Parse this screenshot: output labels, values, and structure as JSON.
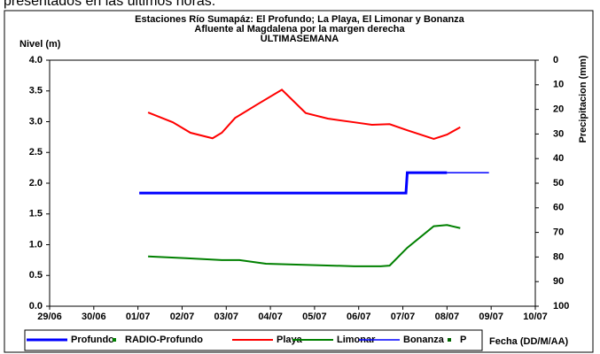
{
  "caption": "presentados en las últimos horas.",
  "chart_data": {
    "type": "line",
    "title": [
      "Estaciones Río Sumapáz: El Profundo; La Playa, El Limonar y Bonanza",
      "Afluente al Magdalena por la margen derecha",
      "ULTIMASEMANA"
    ],
    "ylabel": "Nivel (m)",
    "y2label": "Precipitacion (mm)",
    "xlabel": "Fecha (DD/M/AA)",
    "xlim": [
      0,
      11
    ],
    "xticks": [
      {
        "value": 0,
        "label": "29/06"
      },
      {
        "value": 1,
        "label": "30/06"
      },
      {
        "value": 2,
        "label": "01/07"
      },
      {
        "value": 3,
        "label": "02/07"
      },
      {
        "value": 4,
        "label": "03/07"
      },
      {
        "value": 5,
        "label": "04/07"
      },
      {
        "value": 6,
        "label": "05/07"
      },
      {
        "value": 7,
        "label": "06/07"
      },
      {
        "value": 8,
        "label": "07/07"
      },
      {
        "value": 9,
        "label": "08/07"
      },
      {
        "value": 10,
        "label": "09/07"
      },
      {
        "value": 11,
        "label": "10/07"
      }
    ],
    "ylim": [
      0,
      4
    ],
    "yticks": [
      {
        "value": 0,
        "label": "0.0"
      },
      {
        "value": 0.5,
        "label": "0.5"
      },
      {
        "value": 1,
        "label": "1.0"
      },
      {
        "value": 1.5,
        "label": "1.5"
      },
      {
        "value": 2,
        "label": "2.0"
      },
      {
        "value": 2.5,
        "label": "2.5"
      },
      {
        "value": 3,
        "label": "3.0"
      },
      {
        "value": 3.5,
        "label": "3.5"
      },
      {
        "value": 4,
        "label": "4.0"
      }
    ],
    "y2lim": [
      100,
      0
    ],
    "y2ticks": [
      0,
      10,
      20,
      30,
      40,
      50,
      60,
      70,
      80,
      90,
      100
    ],
    "series": [
      {
        "name": "Profundo",
        "color": "#0000ff",
        "mark": "line",
        "width": 3,
        "x": [
          2.03,
          8.07,
          8.1,
          9.0
        ],
        "values": [
          1.84,
          1.84,
          2.17,
          2.17
        ]
      },
      {
        "name": "RADIO-Profundo",
        "color": "#008000",
        "mark": "point",
        "x": [],
        "values": []
      },
      {
        "name": "Playa",
        "color": "#ff0000",
        "mark": "line",
        "width": 2,
        "x": [
          2.23,
          2.79,
          3.19,
          3.69,
          3.9,
          4.2,
          4.7,
          5.26,
          5.8,
          6.3,
          6.9,
          7.3,
          7.7,
          8.1,
          8.7,
          9.0,
          9.3
        ],
        "values": [
          3.15,
          2.99,
          2.82,
          2.73,
          2.82,
          3.06,
          3.28,
          3.52,
          3.14,
          3.05,
          2.99,
          2.95,
          2.96,
          2.86,
          2.72,
          2.79,
          2.91
        ]
      },
      {
        "name": "Limonar",
        "color": "#008000",
        "mark": "line",
        "width": 2,
        "x": [
          2.23,
          3.09,
          3.9,
          4.3,
          4.9,
          6.9,
          7.5,
          7.7,
          8.1,
          8.7,
          9.0,
          9.3
        ],
        "values": [
          0.81,
          0.78,
          0.75,
          0.75,
          0.69,
          0.65,
          0.65,
          0.66,
          0.95,
          1.3,
          1.32,
          1.27
        ]
      },
      {
        "name": "Bonanza",
        "color": "#0000ff",
        "mark": "line",
        "width": 1.5,
        "x": [
          9.0,
          9.95
        ],
        "values": [
          2.17,
          2.17
        ]
      },
      {
        "name": "P",
        "color": "#006400",
        "mark": "point",
        "x": [],
        "values": []
      }
    ]
  }
}
